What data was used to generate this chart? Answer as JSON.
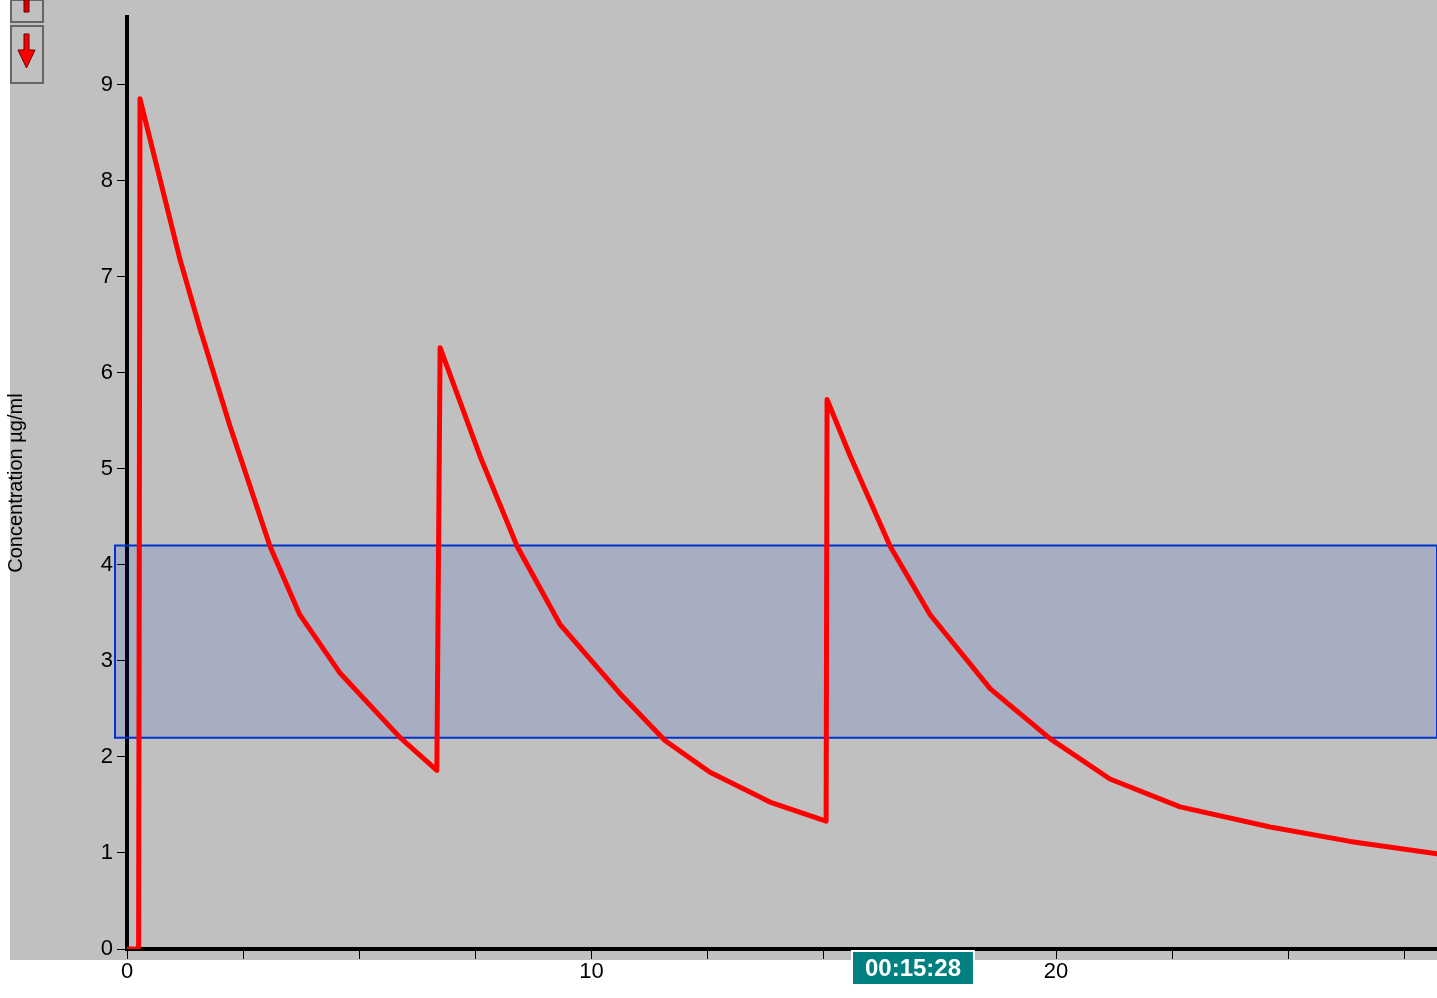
{
  "chart_data": {
    "type": "line",
    "ylabel": "Concentration µg/ml",
    "x": [
      0,
      0.25,
      0.28,
      1.14,
      1.57,
      2.22,
      3.08,
      3.72,
      4.59,
      5.88,
      6.67,
      6.74,
      7.6,
      8.4,
      9.32,
      10.61,
      11.58,
      12.55,
      13.84,
      15.05,
      15.07,
      15.57,
      16.43,
      17.29,
      18.58,
      19.87,
      21.16,
      22.67,
      24.61,
      26.33,
      28.2
    ],
    "series": [
      {
        "color": "#ff0000",
        "values": [
          0,
          0,
          8.85,
          7.18,
          6.46,
          5.44,
          4.19,
          3.48,
          2.87,
          2.2,
          1.86,
          6.26,
          5.13,
          4.19,
          3.38,
          2.66,
          2.17,
          1.84,
          1.53,
          1.33,
          5.72,
          5.13,
          4.19,
          3.48,
          2.71,
          2.19,
          1.77,
          1.48,
          1.27,
          1.12,
          0.99
        ]
      }
    ],
    "xlim": [
      0,
      28.2
    ],
    "xticks": [
      0,
      {
        "value": 2.5,
        "label": null
      },
      {
        "value": 5,
        "label": null
      },
      {
        "value": 7.5,
        "label": null
      },
      10,
      {
        "value": 12.5,
        "label": null
      },
      {
        "value": 15,
        "label": null
      },
      {
        "value": 17.5,
        "label": null
      },
      20,
      {
        "value": 22.5,
        "label": null
      },
      {
        "value": 25,
        "label": null
      },
      {
        "value": 27.5,
        "label": null
      }
    ],
    "ylim": [
      0,
      9.7
    ],
    "yticks": [
      0,
      1,
      2,
      3,
      4,
      5,
      6,
      7,
      8,
      9
    ],
    "bands": [
      {
        "axis": "y",
        "from": 2.2,
        "to": 4.2,
        "color": "#0033cc"
      }
    ],
    "annotations": [
      "00:15:28"
    ],
    "marker": "none",
    "line_style": "solid",
    "grid": false,
    "legend": false
  }
}
